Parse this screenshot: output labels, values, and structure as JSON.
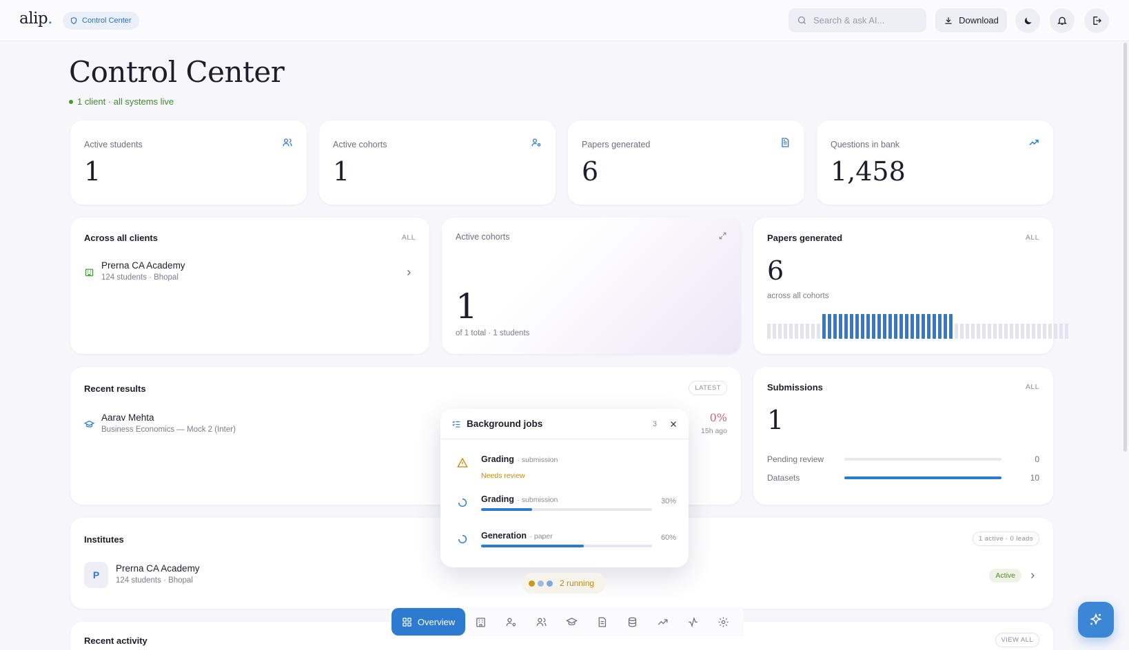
{
  "app": {
    "logo": "alip",
    "logo_dot": "."
  },
  "header": {
    "breadcrumb": "Control Center",
    "search_placeholder": "Search & ask AI...",
    "download_label": "Download"
  },
  "page": {
    "title": "Control Center",
    "status": "1 client · all systems live"
  },
  "stats": [
    {
      "label": "Active students",
      "value": "1",
      "icon": "users-icon"
    },
    {
      "label": "Active cohorts",
      "value": "1",
      "icon": "user-cog-icon"
    },
    {
      "label": "Papers generated",
      "value": "6",
      "icon": "document-icon"
    },
    {
      "label": "Questions in bank",
      "value": "1,458",
      "icon": "trending-up-icon"
    }
  ],
  "clients_card": {
    "title": "Across all clients",
    "tag": "ALL",
    "items": [
      {
        "name": "Prerna CA Academy",
        "sub": "124 students · Bhopal"
      }
    ]
  },
  "cohorts_card": {
    "label": "Active cohorts",
    "value": "1",
    "sub": "of 1 total · 1 students"
  },
  "papers_card": {
    "title": "Papers generated",
    "tag": "ALL",
    "value": "6",
    "sub": "across all cohorts",
    "bars_total": 55,
    "bars_active_start": 10,
    "bars_active_count": 24
  },
  "results_card": {
    "title": "Recent results",
    "tag": "LATEST",
    "items": [
      {
        "name": "Aarav Mehta",
        "sub": "Business Economics — Mock 2 (Inter)",
        "score": "0%",
        "time": "15h ago"
      }
    ]
  },
  "submissions_card": {
    "title": "Submissions",
    "tag": "ALL",
    "value": "1",
    "rows": [
      {
        "label": "Pending review",
        "value": "0",
        "fraction": 0
      },
      {
        "label": "Datasets",
        "value": "10",
        "fraction": 1
      }
    ]
  },
  "institutes_card": {
    "title": "Institutes",
    "tag": "1 active · 0 leads",
    "items": [
      {
        "initial": "P",
        "name": "Prerna CA Academy",
        "sub": "124 students · Bhopal",
        "status": "Active"
      }
    ]
  },
  "activity_card": {
    "title": "Recent activity",
    "tag": "VIEW ALL"
  },
  "jobs": {
    "title": "Background jobs",
    "count": "3",
    "items": [
      {
        "name": "Grading",
        "kind": "· submission",
        "note": "Needs review"
      },
      {
        "name": "Grading",
        "kind": "· submission",
        "pct": "30%",
        "progress": 0.3
      },
      {
        "name": "Generation",
        "kind": "· paper",
        "pct": "60%",
        "progress": 0.6
      }
    ]
  },
  "running": {
    "label": "2 running"
  },
  "dock": {
    "active_label": "Overview",
    "items": [
      "building-icon",
      "user-cog-icon",
      "users-icon",
      "graduation-cap-icon",
      "document-icon",
      "database-icon",
      "trending-up-icon",
      "activity-icon",
      "settings-icon"
    ]
  },
  "colors": {
    "accent": "#2c7bd0",
    "success": "#3f9b2a",
    "warning": "#c08a12",
    "danger": "#d4607a"
  }
}
